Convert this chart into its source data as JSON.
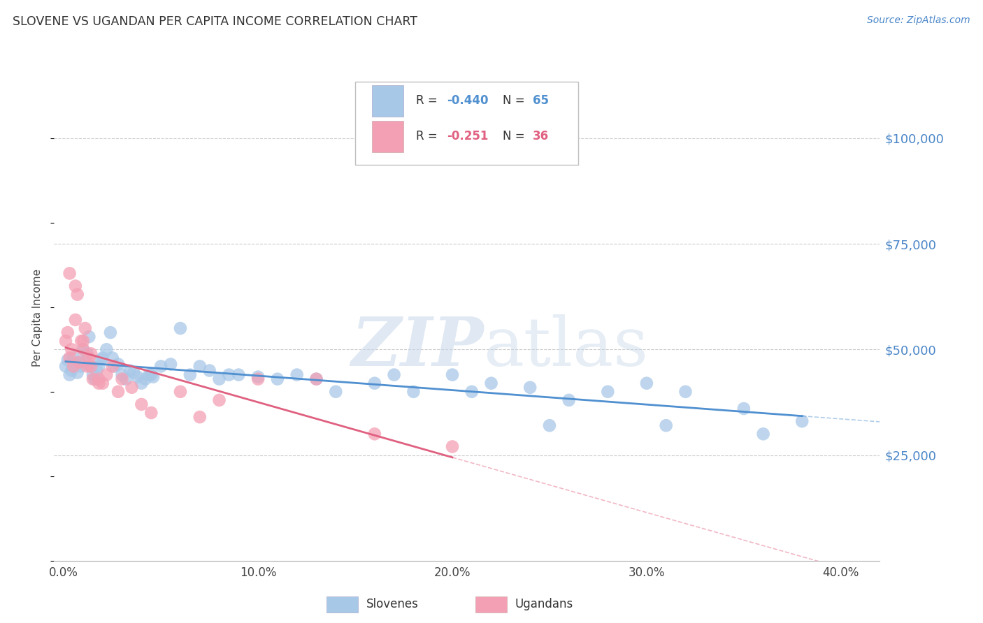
{
  "title": "SLOVENE VS UGANDAN PER CAPITA INCOME CORRELATION CHART",
  "source": "Source: ZipAtlas.com",
  "ylabel": "Per Capita Income",
  "xlabel_ticks": [
    "0.0%",
    "10.0%",
    "20.0%",
    "30.0%",
    "40.0%"
  ],
  "xlabel_vals": [
    0.0,
    0.1,
    0.2,
    0.3,
    0.4
  ],
  "ytick_labels": [
    "$25,000",
    "$50,000",
    "$75,000",
    "$100,000"
  ],
  "ytick_vals": [
    25000,
    50000,
    75000,
    100000
  ],
  "ylim": [
    0,
    115000
  ],
  "xlim": [
    -0.005,
    0.42
  ],
  "legend_label_slovenes": "Slovenes",
  "legend_label_ugandans": "Ugandans",
  "blue_scatter_color": "#a8c8e8",
  "pink_scatter_color": "#f4a0b4",
  "blue_line_color": "#5090d0",
  "pink_line_color": "#e06080",
  "R_blue": -0.44,
  "N_blue": 65,
  "R_pink": -0.251,
  "N_pink": 36,
  "blue_x": [
    0.001,
    0.002,
    0.003,
    0.004,
    0.005,
    0.006,
    0.007,
    0.008,
    0.009,
    0.01,
    0.011,
    0.012,
    0.013,
    0.014,
    0.015,
    0.016,
    0.017,
    0.018,
    0.019,
    0.02,
    0.022,
    0.024,
    0.026,
    0.028,
    0.03,
    0.032,
    0.034,
    0.036,
    0.038,
    0.04,
    0.042,
    0.044,
    0.046,
    0.05,
    0.055,
    0.06,
    0.065,
    0.07,
    0.075,
    0.08,
    0.09,
    0.1,
    0.11,
    0.12,
    0.14,
    0.16,
    0.18,
    0.2,
    0.22,
    0.24,
    0.26,
    0.28,
    0.3,
    0.32,
    0.35,
    0.38,
    0.025,
    0.045,
    0.085,
    0.13,
    0.17,
    0.21,
    0.25,
    0.36,
    0.31
  ],
  "blue_y": [
    46000,
    47500,
    44000,
    45000,
    48000,
    46500,
    44500,
    47000,
    46000,
    50000,
    47000,
    49000,
    53000,
    46000,
    44000,
    43000,
    45000,
    46000,
    47500,
    48000,
    50000,
    54000,
    46000,
    46500,
    44000,
    43000,
    45000,
    44500,
    43500,
    42000,
    43000,
    44000,
    43500,
    46000,
    46500,
    55000,
    44000,
    46000,
    45000,
    43000,
    44000,
    43500,
    43000,
    44000,
    40000,
    42000,
    40000,
    44000,
    42000,
    41000,
    38000,
    40000,
    42000,
    40000,
    36000,
    33000,
    48000,
    44000,
    44000,
    43000,
    44000,
    40000,
    32000,
    30000,
    32000
  ],
  "pink_x": [
    0.001,
    0.002,
    0.003,
    0.004,
    0.005,
    0.006,
    0.007,
    0.008,
    0.009,
    0.01,
    0.011,
    0.012,
    0.013,
    0.014,
    0.015,
    0.018,
    0.02,
    0.025,
    0.03,
    0.035,
    0.045,
    0.06,
    0.08,
    0.1,
    0.13,
    0.2,
    0.003,
    0.006,
    0.01,
    0.014,
    0.018,
    0.022,
    0.028,
    0.04,
    0.07,
    0.16
  ],
  "pink_y": [
    52000,
    54000,
    48000,
    50000,
    46000,
    57000,
    63000,
    47000,
    52000,
    50000,
    55000,
    46000,
    48000,
    46000,
    43000,
    42000,
    42000,
    46000,
    43000,
    41000,
    35000,
    40000,
    38000,
    43000,
    43000,
    27000,
    68000,
    65000,
    52000,
    49000,
    43000,
    44000,
    40000,
    37000,
    34000,
    30000
  ]
}
